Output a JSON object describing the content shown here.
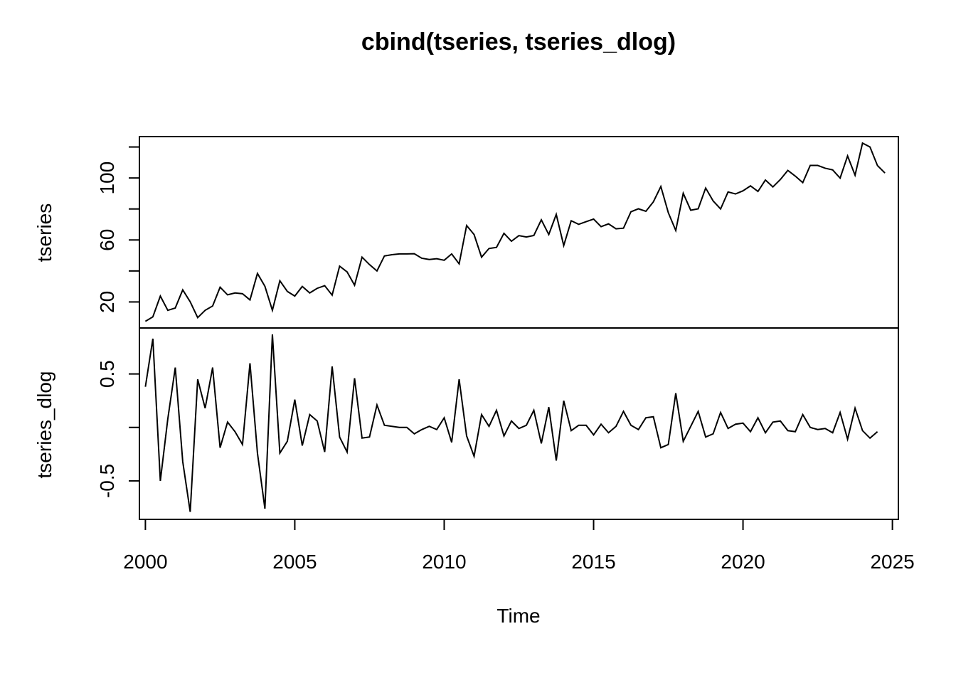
{
  "chart_data": {
    "type": "line",
    "title": "cbind(tseries, tseries_dlog)",
    "xlabel": "Time",
    "xlim": [
      1999.8,
      2025.2
    ],
    "x_ticks": [
      2000,
      2005,
      2010,
      2015,
      2020,
      2025
    ],
    "x_tick_labels": [
      "2000",
      "2005",
      "2010",
      "2015",
      "2020",
      "2025"
    ],
    "frequency": 4,
    "panels": [
      {
        "name": "tseries",
        "ylabel": "tseries",
        "ylim": [
          3.2,
          126.7
        ],
        "y_ticks": [
          20,
          40,
          60,
          80,
          100,
          120
        ],
        "y_tick_labels": [
          "20",
          "",
          "60",
          "",
          "100",
          ""
        ],
        "start": 2000.0,
        "values": [
          7.5,
          10.4,
          23.8,
          14.6,
          16.1,
          27.8,
          20.1,
          9.9,
          14.6,
          17.4,
          29.5,
          24.6,
          25.8,
          25.3,
          21.3,
          38.4,
          30.1,
          14.6,
          33.7,
          26.8,
          23.8,
          30.0,
          25.8,
          28.8,
          30.5,
          24.4,
          43.1,
          39.4,
          30.8,
          48.9,
          44.1,
          40.0,
          49.7,
          50.5,
          51.0,
          51.0,
          51.1,
          48.2,
          47.4,
          47.9,
          46.9,
          51.0,
          44.6,
          69.3,
          63.5,
          48.9,
          54.5,
          55.2,
          64.3,
          59.2,
          62.8,
          61.9,
          62.9,
          73.0,
          63.5,
          76.5,
          56.4,
          72.4,
          70.1,
          71.8,
          73.5,
          68.6,
          70.4,
          67.2,
          67.6,
          78.2,
          80.1,
          78.5,
          84.6,
          94.5,
          77.6,
          66.1,
          90.1,
          79.2,
          80.1,
          93.5,
          85.2,
          80.0,
          91.0,
          89.7,
          91.7,
          94.9,
          91.3,
          98.7,
          94.2,
          99.0,
          104.9,
          101.2,
          97.0,
          108.1,
          108.1,
          106.3,
          105.2,
          99.9,
          114.2,
          101.8,
          122.5,
          120.0,
          108.0,
          103.2
        ]
      },
      {
        "name": "tseries_dlog",
        "ylabel": "tseries_dlog",
        "ylim": [
          -0.86,
          0.93
        ],
        "y_ticks": [
          -0.5,
          0.0,
          0.5
        ],
        "y_tick_labels": [
          "-0.5",
          "",
          "0.5"
        ],
        "start": 2000.0,
        "values": [
          0.38,
          0.83,
          -0.5,
          0.08,
          0.56,
          -0.32,
          -0.79,
          0.45,
          0.18,
          0.56,
          -0.19,
          0.05,
          -0.04,
          -0.16,
          0.6,
          -0.24,
          -0.76,
          0.87,
          -0.24,
          -0.13,
          0.26,
          -0.17,
          0.12,
          0.06,
          -0.23,
          0.57,
          -0.09,
          -0.23,
          0.46,
          -0.1,
          -0.09,
          0.21,
          0.02,
          0.01,
          0.0,
          0.0,
          -0.06,
          -0.02,
          0.01,
          -0.02,
          0.09,
          -0.14,
          0.45,
          -0.08,
          -0.27,
          0.12,
          0.01,
          0.16,
          -0.08,
          0.06,
          -0.01,
          0.02,
          0.16,
          -0.15,
          0.19,
          -0.31,
          0.25,
          -0.03,
          0.02,
          0.02,
          -0.07,
          0.03,
          -0.05,
          0.01,
          0.15,
          0.02,
          -0.02,
          0.09,
          0.1,
          -0.19,
          -0.16,
          0.32,
          -0.13,
          0.01,
          0.15,
          -0.09,
          -0.06,
          0.14,
          -0.01,
          0.03,
          0.04,
          -0.04,
          0.09,
          -0.05,
          0.05,
          0.06,
          -0.03,
          -0.04,
          0.12,
          0.0,
          -0.02,
          -0.01,
          -0.05,
          0.14,
          -0.11,
          0.18,
          -0.03,
          -0.1,
          -0.04
        ]
      }
    ]
  }
}
